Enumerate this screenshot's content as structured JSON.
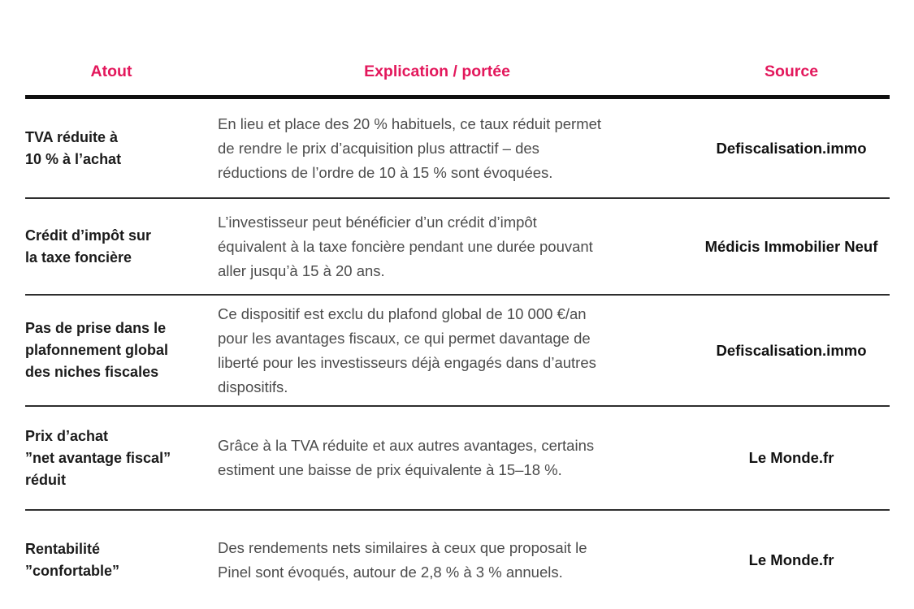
{
  "colors": {
    "accent_header": "#e3185c",
    "heavy_rule": "#101010",
    "row_rule": "#2e2e2e",
    "atout_text": "#1b1b1b",
    "explication_text": "#4c4c4c",
    "source_text": "#111111",
    "background": "#ffffff"
  },
  "table": {
    "headers": {
      "atout": "Atout",
      "explication": "Explication / portée",
      "source": "Source"
    },
    "rows": [
      {
        "atout": "TVA réduite à\n10 % à l’achat",
        "explication": "En lieu et place des 20 % habituels, ce taux réduit permet\nde rendre le prix d’acquisition plus attractif – des\nréductions de l’ordre de 10 à 15 % sont évoquées.",
        "source": "Defiscalisation.immo"
      },
      {
        "atout": "Crédit d’impôt sur\nla taxe foncière",
        "explication": "L’investisseur peut bénéficier d’un crédit d’impôt\néquivalent à la taxe foncière pendant une durée pouvant\naller jusqu’à 15 à 20 ans.",
        "source": "Médicis Immobilier Neuf"
      },
      {
        "atout": "Pas de prise dans le\nplafonnement global\ndes niches fiscales",
        "explication": "Ce dispositif est exclu du plafond global de 10 000 €/an\npour les avantages fiscaux, ce qui permet davantage de\nliberté pour les investisseurs déjà engagés dans d’autres\ndispositifs.",
        "source": "Defiscalisation.immo"
      },
      {
        "atout": "Prix d’achat\n”net avantage fiscal”\nréduit",
        "explication": "Grâce à la TVA réduite et aux autres avantages, certains\nestiment une baisse de prix équivalente à 15–18 %.",
        "source": "Le Monde.fr"
      },
      {
        "atout": "Rentabilité\n”confortable”",
        "explication": "Des rendements nets similaires à ceux que proposait le\nPinel sont évoqués, autour de 2,8 % à 3 % annuels.",
        "source": "Le Monde.fr"
      }
    ]
  }
}
